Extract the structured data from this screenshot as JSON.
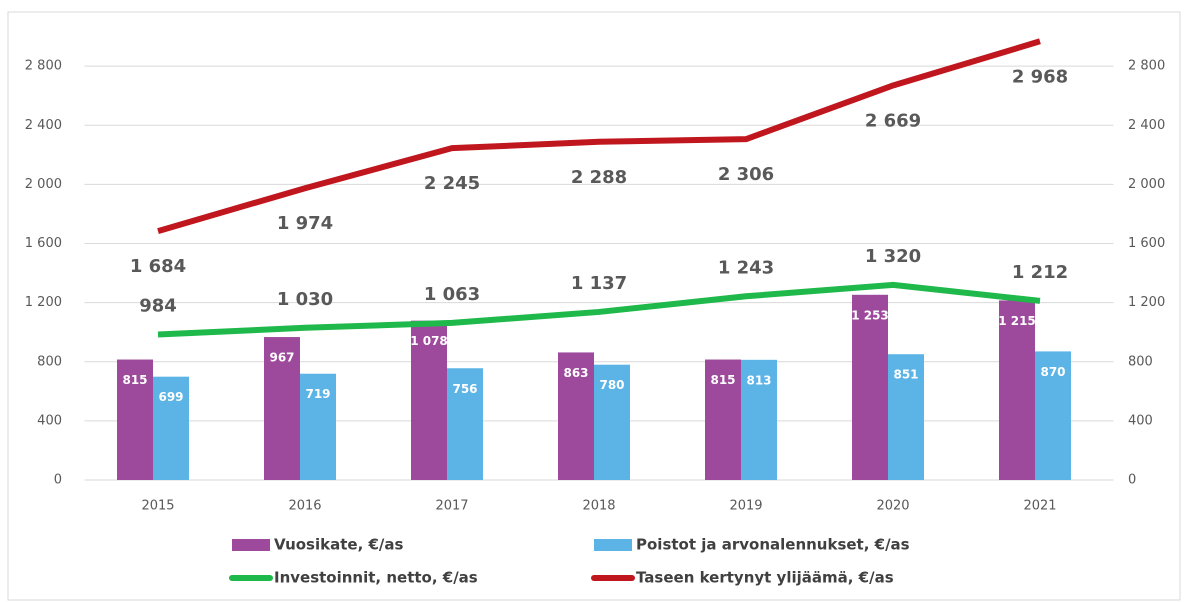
{
  "chart_data": {
    "type": "bar-line",
    "categories": [
      "2015",
      "2016",
      "2017",
      "2018",
      "2019",
      "2020",
      "2021"
    ],
    "series": [
      {
        "name": "Vuosikate, €/as",
        "kind": "bar",
        "color": "#9e4a9c",
        "values": [
          815,
          967,
          1078,
          863,
          815,
          1253,
          1215
        ],
        "value_labels": [
          "815",
          "967",
          "1 078",
          "863",
          "815",
          "1 253",
          "1 215"
        ]
      },
      {
        "name": "Poistot ja arvonalennukset, €/as",
        "kind": "bar",
        "color": "#5cb3e6",
        "values": [
          699,
          719,
          756,
          780,
          813,
          851,
          870
        ]
      },
      {
        "name": "Investoinnit, netto, €/as",
        "kind": "line",
        "axis": "y2",
        "color": "#1fb84a",
        "values": [
          984,
          1030,
          1063,
          1137,
          1243,
          1320,
          1212
        ],
        "value_labels": [
          "984",
          "1 030",
          "1 063",
          "1 137",
          "1 243",
          "1 320",
          "1 212"
        ]
      },
      {
        "name": "Taseen kertynyt ylijäämä, €/as",
        "kind": "line",
        "axis": "y2",
        "color": "#c0171f",
        "values": [
          1684,
          1974,
          2245,
          2288,
          2306,
          2669,
          2968
        ],
        "value_labels": [
          "1 684",
          "1 974",
          "2 245",
          "2 288",
          "2 306",
          "2 669",
          "2 968"
        ]
      }
    ],
    "ylim": [
      0,
      3200
    ],
    "yticks": [
      0,
      400,
      800,
      {
        "value": 1200,
        "label": "1 200"
      },
      {
        "value": 1600,
        "label": "1 600"
      },
      {
        "value": 2000,
        "label": "2 000"
      },
      {
        "value": 2400,
        "label": "2 400"
      },
      {
        "value": 2800,
        "label": "2 800"
      }
    ],
    "y2lim": [
      0,
      3200
    ],
    "y2ticks": [
      0,
      400,
      800,
      {
        "value": 1200,
        "label": "1 200"
      },
      {
        "value": 1600,
        "label": "1 600"
      },
      {
        "value": 2000,
        "label": "2 000"
      },
      {
        "value": 2400,
        "label": "2 400"
      },
      {
        "value": 2800,
        "label": "2 800"
      }
    ],
    "legend": "bottom"
  }
}
